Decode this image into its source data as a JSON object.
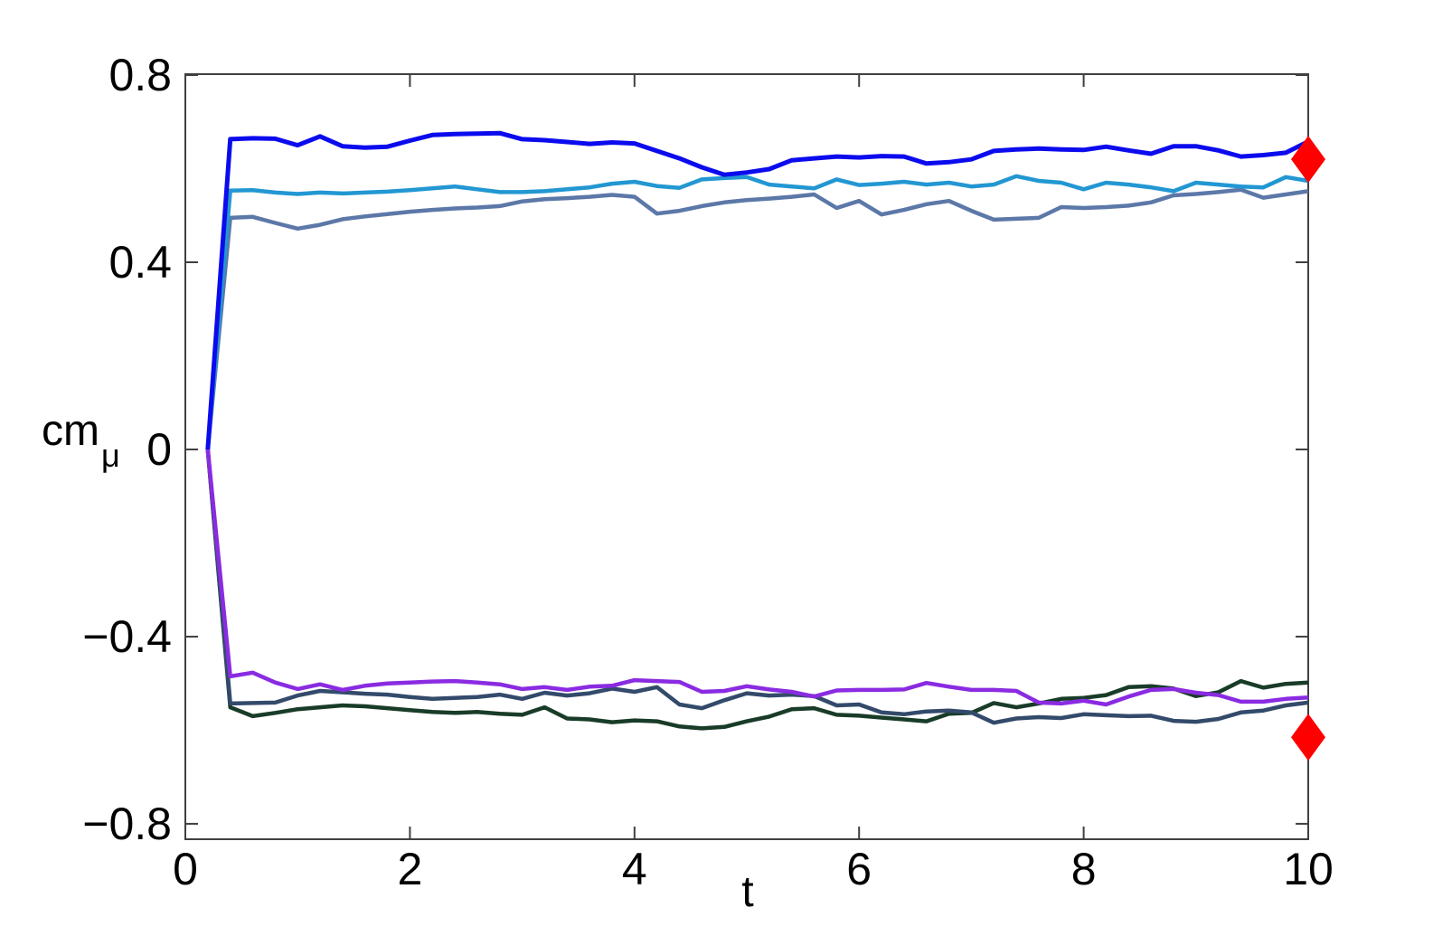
{
  "figure": {
    "background": "#ffffff",
    "axis_color": "#404040",
    "text_color": "#000000"
  },
  "chart_data": {
    "type": "line",
    "title": "",
    "xlabel": "t",
    "ylabel": "cm",
    "ylabel_subscript": "μ",
    "xlim": [
      0,
      10
    ],
    "ylim": [
      -0.833,
      0.802
    ],
    "xticks": [
      0,
      2,
      4,
      6,
      8,
      10
    ],
    "xtick_labels": [
      "0",
      "2",
      "4",
      "6",
      "8",
      "10"
    ],
    "yticks": [
      0.8,
      0.4,
      0,
      -0.4,
      -0.8
    ],
    "ytick_labels": [
      "0.8",
      "0.4",
      "0",
      "−0.4",
      "−0.8"
    ],
    "grid": false,
    "legend_position": "none",
    "x": [
      0.2,
      0.4,
      0.6,
      0.8,
      1.0,
      1.2,
      1.4,
      1.6,
      1.8,
      2.0,
      2.2,
      2.4,
      2.6,
      2.8,
      3.0,
      3.2,
      3.4,
      3.6,
      3.8,
      4.0,
      4.2,
      4.4,
      4.6,
      4.8,
      5.0,
      5.2,
      5.4,
      5.6,
      5.8,
      6.0,
      6.2,
      6.4,
      6.6,
      6.8,
      7.0,
      7.2,
      7.4,
      7.6,
      7.8,
      8.0,
      8.2,
      8.4,
      8.6,
      8.8,
      9.0,
      9.2,
      9.4,
      9.6,
      9.8,
      10.0
    ],
    "series": [
      {
        "name": "slate-blue-line",
        "color": "#5c78a8",
        "linewidth": 4.5,
        "values": [
          0,
          0.495,
          0.497,
          0.484,
          0.472,
          0.48,
          0.492,
          0.498,
          0.503,
          0.508,
          0.512,
          0.515,
          0.517,
          0.52,
          0.53,
          0.535,
          0.537,
          0.54,
          0.544,
          0.54,
          0.504,
          0.51,
          0.52,
          0.528,
          0.533,
          0.536,
          0.54,
          0.545,
          0.516,
          0.531,
          0.502,
          0.512,
          0.524,
          0.531,
          0.51,
          0.491,
          0.493,
          0.495,
          0.518,
          0.516,
          0.518,
          0.521,
          0.528,
          0.543,
          0.546,
          0.55,
          0.555,
          0.538,
          0.545,
          0.552
        ]
      },
      {
        "name": "cyan-line",
        "color": "#2297d2",
        "linewidth": 4.5,
        "values": [
          0,
          0.553,
          0.554,
          0.549,
          0.546,
          0.549,
          0.547,
          0.549,
          0.551,
          0.554,
          0.558,
          0.562,
          0.556,
          0.55,
          0.55,
          0.552,
          0.556,
          0.56,
          0.568,
          0.572,
          0.563,
          0.559,
          0.577,
          0.58,
          0.582,
          0.566,
          0.562,
          0.558,
          0.577,
          0.565,
          0.568,
          0.572,
          0.566,
          0.57,
          0.562,
          0.566,
          0.584,
          0.574,
          0.57,
          0.556,
          0.57,
          0.566,
          0.56,
          0.552,
          0.57,
          0.566,
          0.562,
          0.56,
          0.582,
          0.574
        ]
      },
      {
        "name": "blue-line",
        "color": "#0b0bee",
        "linewidth": 5,
        "values": [
          0,
          0.663,
          0.665,
          0.664,
          0.65,
          0.669,
          0.648,
          0.645,
          0.647,
          0.66,
          0.672,
          0.674,
          0.675,
          0.676,
          0.663,
          0.661,
          0.657,
          0.653,
          0.656,
          0.654,
          0.638,
          0.622,
          0.603,
          0.587,
          0.592,
          0.599,
          0.618,
          0.622,
          0.626,
          0.624,
          0.627,
          0.626,
          0.611,
          0.614,
          0.62,
          0.638,
          0.641,
          0.643,
          0.641,
          0.64,
          0.647,
          0.639,
          0.632,
          0.648,
          0.648,
          0.639,
          0.626,
          0.629,
          0.634,
          0.658
        ]
      },
      {
        "name": "dark-green-line",
        "color": "#193c28",
        "linewidth": 4.5,
        "values": [
          0,
          -0.551,
          -0.57,
          -0.563,
          -0.555,
          -0.551,
          -0.547,
          -0.549,
          -0.553,
          -0.557,
          -0.561,
          -0.563,
          -0.561,
          -0.565,
          -0.567,
          -0.551,
          -0.575,
          -0.577,
          -0.583,
          -0.579,
          -0.581,
          -0.592,
          -0.596,
          -0.593,
          -0.581,
          -0.571,
          -0.555,
          -0.553,
          -0.567,
          -0.569,
          -0.573,
          -0.577,
          -0.581,
          -0.565,
          -0.563,
          -0.542,
          -0.551,
          -0.543,
          -0.533,
          -0.531,
          -0.525,
          -0.508,
          -0.506,
          -0.511,
          -0.527,
          -0.519,
          -0.495,
          -0.509,
          -0.501,
          -0.498
        ]
      },
      {
        "name": "dark-navy-line",
        "color": "#334a6b",
        "linewidth": 4.5,
        "values": [
          0,
          -0.543,
          -0.542,
          -0.541,
          -0.526,
          -0.516,
          -0.519,
          -0.522,
          -0.524,
          -0.529,
          -0.533,
          -0.531,
          -0.529,
          -0.524,
          -0.533,
          -0.52,
          -0.526,
          -0.521,
          -0.511,
          -0.518,
          -0.508,
          -0.545,
          -0.553,
          -0.536,
          -0.521,
          -0.526,
          -0.524,
          -0.527,
          -0.547,
          -0.545,
          -0.562,
          -0.566,
          -0.56,
          -0.558,
          -0.562,
          -0.584,
          -0.575,
          -0.572,
          -0.574,
          -0.566,
          -0.568,
          -0.57,
          -0.569,
          -0.58,
          -0.582,
          -0.576,
          -0.562,
          -0.558,
          -0.547,
          -0.541
        ]
      },
      {
        "name": "purple-line",
        "color": "#8a2be2",
        "linewidth": 4.5,
        "values": [
          0,
          -0.485,
          -0.477,
          -0.498,
          -0.512,
          -0.502,
          -0.514,
          -0.505,
          -0.5,
          -0.498,
          -0.496,
          -0.495,
          -0.498,
          -0.502,
          -0.512,
          -0.508,
          -0.514,
          -0.507,
          -0.505,
          -0.493,
          -0.495,
          -0.497,
          -0.518,
          -0.516,
          -0.506,
          -0.513,
          -0.518,
          -0.528,
          -0.515,
          -0.514,
          -0.514,
          -0.513,
          -0.499,
          -0.507,
          -0.514,
          -0.514,
          -0.516,
          -0.541,
          -0.543,
          -0.537,
          -0.545,
          -0.528,
          -0.514,
          -0.512,
          -0.52,
          -0.525,
          -0.539,
          -0.539,
          -0.533,
          -0.53
        ]
      }
    ],
    "markers": [
      {
        "name": "red-diamond-top",
        "shape": "diamond",
        "color": "#ff0000",
        "x": 10,
        "y": 0.62
      },
      {
        "name": "red-diamond-bottom",
        "shape": "diamond",
        "color": "#ff0000",
        "x": 10,
        "y": -0.615
      }
    ]
  }
}
